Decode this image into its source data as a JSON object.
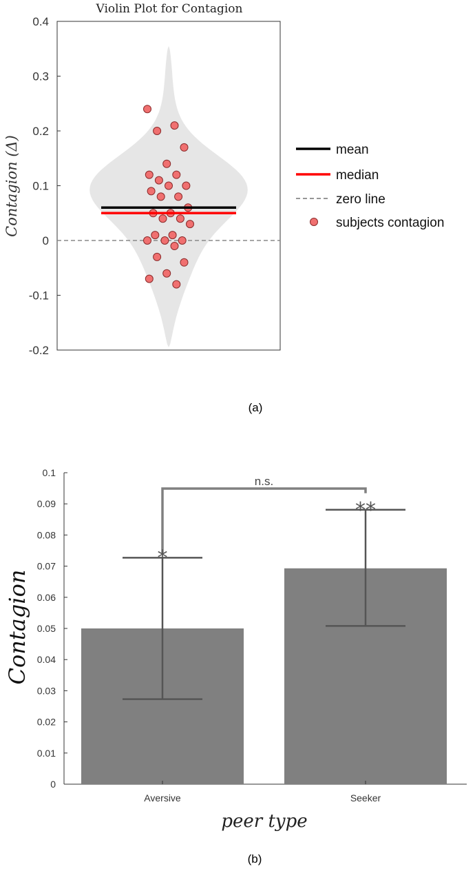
{
  "chart_data": [
    {
      "type": "violin",
      "title": "Violin Plot for Contagion",
      "ylabel": "Contagion (Δ)",
      "xlabel": "",
      "ylim": [
        -0.2,
        0.4
      ],
      "yticks": [
        -0.2,
        -0.1,
        0,
        0.1,
        0.2,
        0.3,
        0.4
      ],
      "ytick_labels": [
        "-0.2",
        "-0.1",
        "0",
        "0.1",
        "0.2",
        "0.3",
        "0.4"
      ],
      "mean": 0.06,
      "median": 0.05,
      "zero_line": 0,
      "density_range": [
        -0.195,
        0.355
      ],
      "points": [
        0.24,
        0.21,
        0.2,
        0.17,
        0.14,
        0.12,
        0.12,
        0.11,
        0.1,
        0.1,
        0.09,
        0.08,
        0.08,
        0.06,
        0.05,
        0.05,
        0.04,
        0.04,
        0.03,
        0.01,
        0.01,
        0.0,
        0.0,
        0.0,
        -0.01,
        -0.03,
        -0.04,
        -0.06,
        -0.07,
        -0.08
      ],
      "legend": [
        {
          "label": "mean",
          "color": "#000000",
          "style": "solid"
        },
        {
          "label": "median",
          "color": "#ff0000",
          "style": "solid"
        },
        {
          "label": "zero line",
          "color": "#888888",
          "style": "dashed"
        },
        {
          "label": "subjects contagion",
          "color": "#f07070",
          "style": "marker"
        }
      ],
      "legend_position": "right",
      "caption": "(a)"
    },
    {
      "type": "bar",
      "title": "",
      "categories": [
        "Aversive",
        "Seeker"
      ],
      "values": [
        0.05,
        0.0693
      ],
      "error_low": [
        0.0273,
        0.0508
      ],
      "error_high": [
        0.0727,
        0.0881
      ],
      "significance": [
        "*",
        "**"
      ],
      "comparison_label": "n.s.",
      "xlabel": "peer type",
      "ylabel": "Contagion",
      "ylim": [
        0,
        0.1
      ],
      "yticks": [
        0,
        0.01,
        0.02,
        0.03,
        0.04,
        0.05,
        0.06,
        0.07,
        0.08,
        0.09,
        0.1
      ],
      "ytick_labels": [
        "0",
        "0.01",
        "0.02",
        "0.03",
        "0.04",
        "0.05",
        "0.06",
        "0.07",
        "0.08",
        "0.09",
        "0.1"
      ],
      "bar_color": "#808080",
      "caption": "(b)"
    }
  ],
  "colors": {
    "violin_fill": "#e6e6e6",
    "mean_line": "#000000",
    "median_line": "#ff0000",
    "zero_line": "#888888",
    "point_fill": "#f07070",
    "point_stroke": "#8a2a2a",
    "bar_fill": "#808080",
    "error_bar": "#555555",
    "bracket": "#808080"
  }
}
